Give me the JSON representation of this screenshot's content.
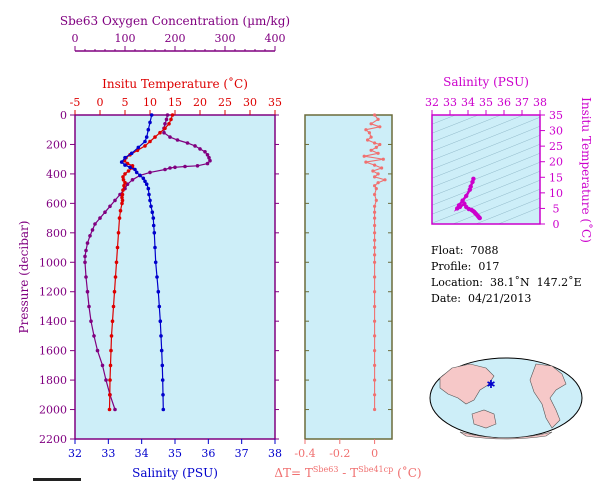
{
  "colors": {
    "oxygen": "#800080",
    "temperature": "#dd0000",
    "salinity": "#0000cc",
    "pressure_axis": "#800080",
    "delta_t": "#f07070",
    "ts_axis": "#cc00cc",
    "panel_fill": "#cdeef8",
    "map_land": "#f6c8c8",
    "map_ocean": "#cdeef8"
  },
  "info": {
    "float": "Float:  7088",
    "profile": "Profile:  017",
    "location": "Location:  38.1˚N  147.2˚E",
    "date": "Date:  04/21/2013"
  },
  "chart_data": [
    {
      "type": "line",
      "panel": "profiles",
      "title": "Sbe63 Oxygen Concentration (µm/kg)",
      "ylabel": "Pressure (decibar)",
      "ylim": [
        2200,
        0
      ],
      "y_ticks": [
        0,
        200,
        400,
        600,
        800,
        1000,
        1200,
        1400,
        1600,
        1800,
        2000,
        2200
      ],
      "axes": {
        "oxygen": {
          "label": "Sbe63 Oxygen Concentration (µm/kg)",
          "lim": [
            0,
            400
          ],
          "ticks": [
            0,
            100,
            200,
            300,
            400
          ]
        },
        "temperature": {
          "label": "Insitu Temperature (˚C)",
          "lim": [
            -5,
            35
          ],
          "ticks": [
            -5,
            0,
            5,
            10,
            15,
            20,
            25,
            30,
            35
          ]
        },
        "salinity": {
          "label": "Salinity (PSU)",
          "lim": [
            32,
            38
          ],
          "ticks": [
            32,
            33,
            34,
            35,
            36,
            37,
            38
          ]
        }
      },
      "series": [
        {
          "axis": "oxygen",
          "points": [
            [
              185,
              0
            ],
            [
              183,
              30
            ],
            [
              180,
              60
            ],
            [
              178,
              90
            ],
            [
              178,
              120
            ],
            [
              190,
              150
            ],
            [
              205,
              170
            ],
            [
              225,
              190
            ],
            [
              240,
              210
            ],
            [
              250,
              230
            ],
            [
              260,
              250
            ],
            [
              265,
              270
            ],
            [
              268,
              290
            ],
            [
              270,
              310
            ],
            [
              265,
              330
            ],
            [
              245,
              345
            ],
            [
              220,
              350
            ],
            [
              200,
              355
            ],
            [
              190,
              360
            ],
            [
              180,
              370
            ],
            [
              150,
              390
            ],
            [
              130,
              410
            ],
            [
              115,
              440
            ],
            [
              105,
              470
            ],
            [
              100,
              500
            ],
            [
              90,
              540
            ],
            [
              80,
              580
            ],
            [
              70,
              620
            ],
            [
              60,
              660
            ],
            [
              50,
              700
            ],
            [
              40,
              740
            ],
            [
              35,
              780
            ],
            [
              30,
              820
            ],
            [
              25,
              870
            ],
            [
              22,
              920
            ],
            [
              20,
              960
            ],
            [
              20,
              1000
            ],
            [
              22,
              1100
            ],
            [
              25,
              1200
            ],
            [
              28,
              1300
            ],
            [
              32,
              1400
            ],
            [
              38,
              1500
            ],
            [
              45,
              1600
            ],
            [
              55,
              1700
            ],
            [
              62,
              1800
            ],
            [
              70,
              1900
            ],
            [
              80,
              2000
            ]
          ]
        },
        {
          "axis": "temperature",
          "points": [
            [
              14.5,
              0
            ],
            [
              14.2,
              30
            ],
            [
              13.8,
              60
            ],
            [
              13,
              90
            ],
            [
              12,
              120
            ],
            [
              11,
              150
            ],
            [
              10,
              180
            ],
            [
              9,
              210
            ],
            [
              7.5,
              240
            ],
            [
              6,
              270
            ],
            [
              5.2,
              290
            ],
            [
              4.9,
              310
            ],
            [
              5.5,
              330
            ],
            [
              6.5,
              345
            ],
            [
              6.5,
              360
            ],
            [
              5.7,
              380
            ],
            [
              5,
              400
            ],
            [
              4.6,
              420
            ],
            [
              4.7,
              440
            ],
            [
              5,
              460
            ],
            [
              4.8,
              480
            ],
            [
              4.6,
              510
            ],
            [
              4.5,
              540
            ],
            [
              4.4,
              560
            ],
            [
              4.5,
              580
            ],
            [
              4.4,
              600
            ],
            [
              4.1,
              650
            ],
            [
              3.9,
              700
            ],
            [
              3.7,
              800
            ],
            [
              3.5,
              900
            ],
            [
              3.3,
              1000
            ],
            [
              3.1,
              1100
            ],
            [
              2.9,
              1200
            ],
            [
              2.7,
              1300
            ],
            [
              2.5,
              1400
            ],
            [
              2.3,
              1500
            ],
            [
              2.2,
              1600
            ],
            [
              2.1,
              1700
            ],
            [
              2.0,
              1800
            ],
            [
              1.95,
              1900
            ],
            [
              1.9,
              2000
            ]
          ]
        },
        {
          "axis": "salinity",
          "points": [
            [
              34.3,
              0
            ],
            [
              34.25,
              50
            ],
            [
              34.2,
              100
            ],
            [
              34.15,
              150
            ],
            [
              34.1,
              180
            ],
            [
              33.9,
              220
            ],
            [
              33.7,
              260
            ],
            [
              33.5,
              290
            ],
            [
              33.4,
              320
            ],
            [
              33.5,
              340
            ],
            [
              33.65,
              355
            ],
            [
              33.8,
              370
            ],
            [
              33.85,
              390
            ],
            [
              33.95,
              410
            ],
            [
              34.05,
              430
            ],
            [
              34.1,
              450
            ],
            [
              34.15,
              470
            ],
            [
              34.2,
              500
            ],
            [
              34.22,
              540
            ],
            [
              34.25,
              580
            ],
            [
              34.28,
              620
            ],
            [
              34.32,
              660
            ],
            [
              34.35,
              700
            ],
            [
              34.36,
              750
            ],
            [
              34.38,
              800
            ],
            [
              34.4,
              900
            ],
            [
              34.42,
              1000
            ],
            [
              34.46,
              1100
            ],
            [
              34.5,
              1200
            ],
            [
              34.53,
              1300
            ],
            [
              34.56,
              1400
            ],
            [
              34.58,
              1500
            ],
            [
              34.6,
              1600
            ],
            [
              34.62,
              1700
            ],
            [
              34.63,
              1800
            ],
            [
              34.64,
              1900
            ],
            [
              34.65,
              2000
            ]
          ]
        }
      ]
    },
    {
      "type": "line",
      "panel": "delta_t",
      "xlabel": "ΔT= T^Sbe63 - T^Sbe41cp (˚C)",
      "xlim": [
        -0.4,
        0.1
      ],
      "x_ticks": [
        -0.4,
        -0.2,
        0.0
      ],
      "ylim": [
        2200,
        0
      ],
      "points": [
        [
          0,
          0
        ],
        [
          0.02,
          30
        ],
        [
          -0.02,
          60
        ],
        [
          0.03,
          80
        ],
        [
          -0.05,
          100
        ],
        [
          -0.03,
          120
        ],
        [
          -0.02,
          150
        ],
        [
          -0.04,
          170
        ],
        [
          0,
          190
        ],
        [
          0.03,
          200
        ],
        [
          0.01,
          220
        ],
        [
          -0.02,
          240
        ],
        [
          0.02,
          260
        ],
        [
          -0.06,
          280
        ],
        [
          0.05,
          300
        ],
        [
          -0.05,
          320
        ],
        [
          0.0,
          340
        ],
        [
          0.04,
          360
        ],
        [
          -0.01,
          380
        ],
        [
          0.02,
          400
        ],
        [
          0.0,
          420
        ],
        [
          0.06,
          440
        ],
        [
          0.02,
          460
        ],
        [
          0.0,
          480
        ],
        [
          0.01,
          500
        ],
        [
          0.0,
          540
        ],
        [
          0.01,
          580
        ],
        [
          0.0,
          620
        ],
        [
          0.0,
          660
        ],
        [
          0.0,
          700
        ],
        [
          0.0,
          750
        ],
        [
          0.0,
          800
        ],
        [
          0.0,
          850
        ],
        [
          0.0,
          900
        ],
        [
          0.0,
          950
        ],
        [
          0.0,
          1000
        ],
        [
          0.0,
          1100
        ],
        [
          0.0,
          1200
        ],
        [
          0.0,
          1300
        ],
        [
          0.0,
          1400
        ],
        [
          0.0,
          1500
        ],
        [
          0.0,
          1600
        ],
        [
          0.0,
          1700
        ],
        [
          0.0,
          1800
        ],
        [
          0.0,
          1900
        ],
        [
          0.0,
          2000
        ]
      ]
    },
    {
      "type": "scatter",
      "panel": "ts_diagram",
      "xlabel": "Salinity (PSU)",
      "ylabel": "Insitu Temperature (˚C)",
      "xlim": [
        32,
        38
      ],
      "ylim": [
        0,
        35
      ],
      "x_ticks": [
        32,
        33,
        34,
        35,
        36,
        37,
        38
      ],
      "y_ticks": [
        0,
        5,
        10,
        15,
        20,
        25,
        30,
        35
      ],
      "points": [
        [
          34.3,
          14.5
        ],
        [
          34.25,
          13.5
        ],
        [
          34.15,
          12
        ],
        [
          34.1,
          11
        ],
        [
          33.9,
          9
        ],
        [
          33.7,
          7.5
        ],
        [
          33.5,
          6
        ],
        [
          33.4,
          5
        ],
        [
          33.55,
          5.5
        ],
        [
          33.8,
          6.5
        ],
        [
          33.9,
          5.5
        ],
        [
          34.05,
          4.8
        ],
        [
          34.2,
          4.5
        ],
        [
          34.28,
          4.2
        ],
        [
          34.35,
          3.9
        ],
        [
          34.4,
          3.5
        ],
        [
          34.45,
          3.2
        ],
        [
          34.5,
          2.9
        ],
        [
          34.56,
          2.5
        ],
        [
          34.6,
          2.2
        ],
        [
          34.64,
          2.0
        ],
        [
          34.65,
          1.9
        ]
      ]
    }
  ]
}
